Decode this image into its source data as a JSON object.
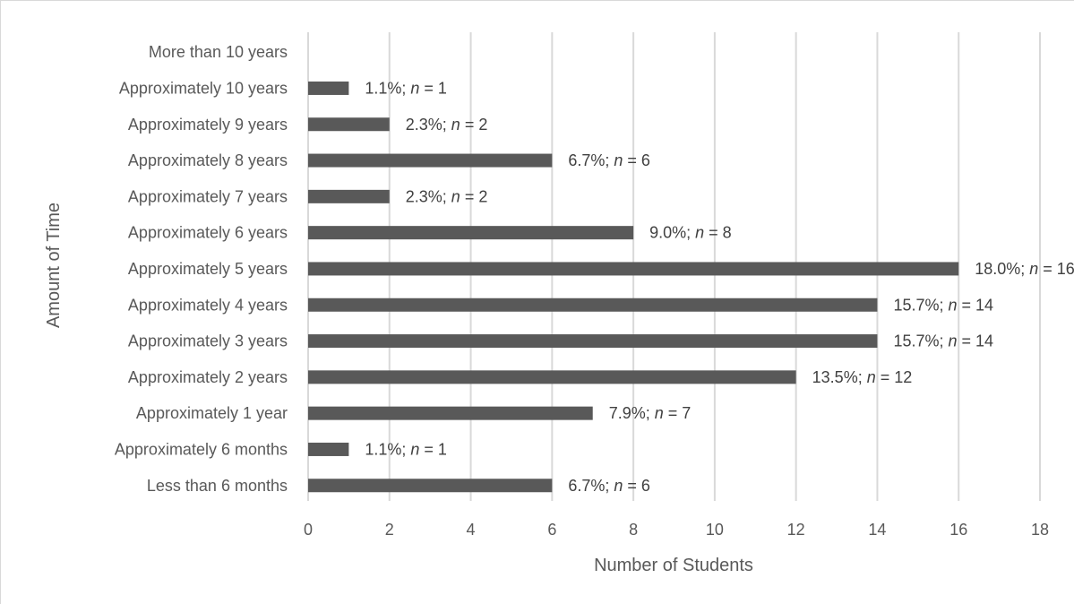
{
  "chart_data": {
    "type": "bar",
    "orientation": "horizontal",
    "categories": [
      "Less than 6 months",
      "Approximately 6 months",
      "Approximately 1 year",
      "Approximately 2 years",
      "Approximately 3 years",
      "Approximately 4 years",
      "Approximately 5 years",
      "Approximately 6 years",
      "Approximately 7 years",
      "Approximately 8 years",
      "Approximately 9 years",
      "Approximately 10 years",
      "More than 10 years"
    ],
    "values": [
      6,
      1,
      7,
      12,
      14,
      14,
      16,
      8,
      2,
      6,
      2,
      1,
      0
    ],
    "data_labels": [
      {
        "pct": "6.7%; ",
        "n": "n",
        "eq": " = 6"
      },
      {
        "pct": "1.1%; ",
        "n": "n",
        "eq": " = 1"
      },
      {
        "pct": "7.9%; ",
        "n": "n",
        "eq": " = 7"
      },
      {
        "pct": "13.5%; ",
        "n": "n",
        "eq": " = 12"
      },
      {
        "pct": "15.7%; ",
        "n": "n",
        "eq": " = 14"
      },
      {
        "pct": "15.7%; ",
        "n": "n",
        "eq": " = 14"
      },
      {
        "pct": "18.0%; ",
        "n": "n",
        "eq": " = 16"
      },
      {
        "pct": "9.0%; ",
        "n": "n",
        "eq": " = 8"
      },
      {
        "pct": "2.3%; ",
        "n": "n",
        "eq": " = 2"
      },
      {
        "pct": "6.7%; ",
        "n": "n",
        "eq": " = 6"
      },
      {
        "pct": "2.3%; ",
        "n": "n",
        "eq": " = 2"
      },
      {
        "pct": "1.1%; ",
        "n": "n",
        "eq": " = 1"
      },
      null
    ],
    "xlabel": "Number of Students",
    "ylabel": "Amount of Time",
    "xlim": [
      0,
      18
    ],
    "x_ticks": [
      0,
      2,
      4,
      6,
      8,
      10,
      12,
      14,
      16,
      18
    ],
    "grid": "vertical",
    "legend": "none",
    "colors": {
      "bar": "#595959",
      "grid": "#d9d9d9",
      "text": "#595959"
    }
  }
}
